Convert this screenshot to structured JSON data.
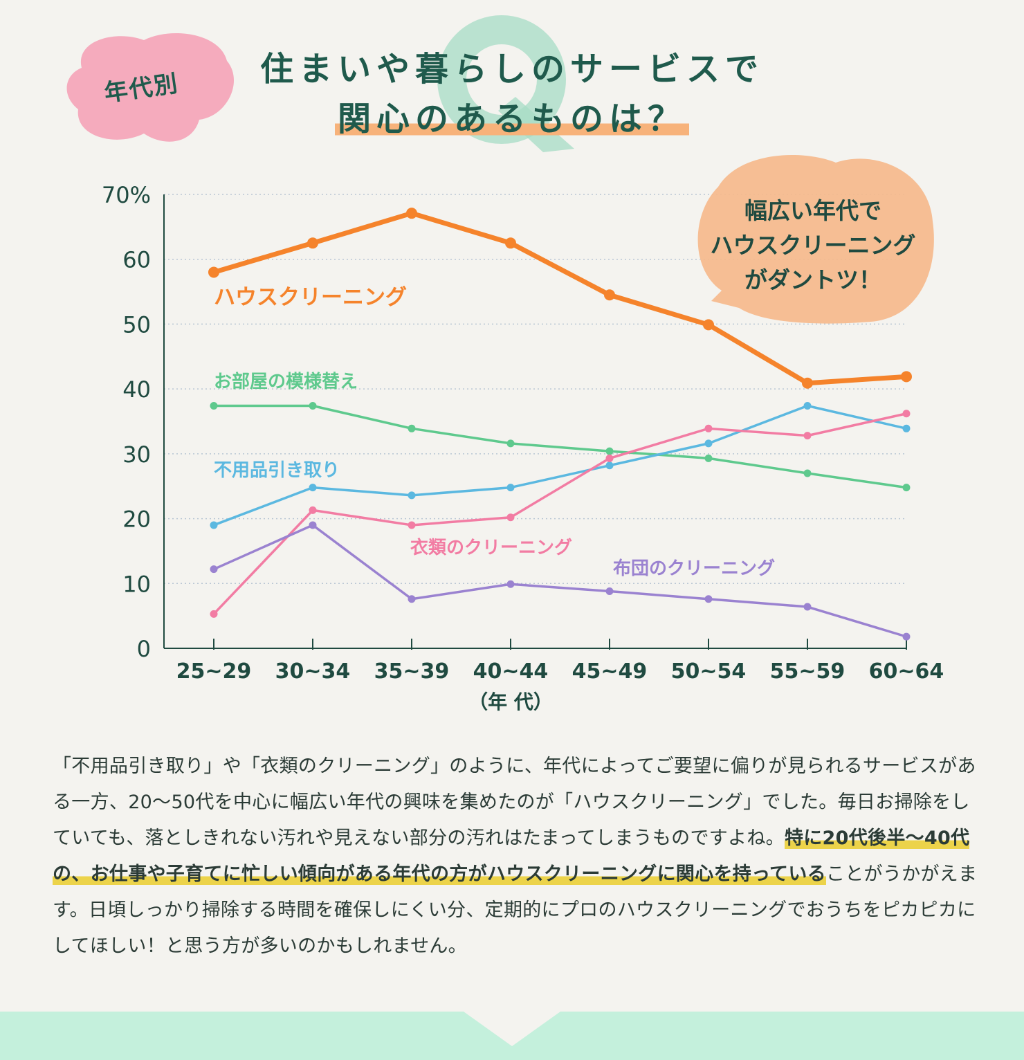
{
  "header": {
    "tag": "年代別",
    "q_mark": "Q",
    "title_line1": "住まいや暮らしのサービスで",
    "title_line2": "関心のあるものは？"
  },
  "callout": {
    "lines": [
      "幅広い年代で",
      "ハウスクリーニング",
      "がダントツ！"
    ],
    "color": "#f6b889"
  },
  "chart_data": {
    "type": "line",
    "x": [
      "25~29",
      "30~34",
      "35~39",
      "40~44",
      "45~49",
      "50~54",
      "55~59",
      "60~64"
    ],
    "xlabel": "（年 代）",
    "ylabel": "",
    "ylim": [
      0,
      70
    ],
    "yticks": [
      "0",
      "10",
      "20",
      "30",
      "40",
      "50",
      "60",
      "70%"
    ],
    "grid": true,
    "series": [
      {
        "name": "ハウスクリーニング",
        "color": "#f5832b",
        "values": [
          58.0,
          62.5,
          67.1,
          62.5,
          54.5,
          49.9,
          40.9,
          41.9
        ]
      },
      {
        "name": "お部屋の模様替え",
        "color": "#5ec98d",
        "values": [
          37.4,
          37.4,
          33.9,
          31.6,
          30.4,
          29.3,
          27.0,
          24.8
        ]
      },
      {
        "name": "不用品引き取り",
        "color": "#5bb8e0",
        "values": [
          19.0,
          24.8,
          23.6,
          24.8,
          28.2,
          31.6,
          37.4,
          33.9
        ]
      },
      {
        "name": "衣類のクリーニング",
        "color": "#f27ca3",
        "values": [
          5.3,
          21.3,
          19.0,
          20.2,
          29.3,
          33.9,
          32.8,
          36.2
        ]
      },
      {
        "name": "布団のクリーニング",
        "color": "#9a82d0",
        "values": [
          12.2,
          19.0,
          7.6,
          9.9,
          8.8,
          7.6,
          6.4,
          1.8
        ]
      }
    ]
  },
  "body": {
    "p1": "「不用品引き取り」や「衣類のクリーニング」のように、年代によってご要望に偏りが見られるサービスがある一方、20〜50代を中心に幅広い年代の興味を集めたのが「ハウスクリーニング」でした。毎日お掃除をしていても、落としきれない汚れや見えない部分の汚れはたまってしまうものですよね。",
    "highlight": "特に20代後半〜40代の、お仕事や子育てに忙しい傾向がある年代の方がハウスクリーニングに関心を持っている",
    "p2": "ことがうかがえます。日頃しっかり掃除する時間を確保しにくい分、定期的にプロのハウスクリーニングでおうちをピカピカにしてほしい！と思う方が多いのかもしれません。",
    "highlight_color": "#ecd34a"
  }
}
